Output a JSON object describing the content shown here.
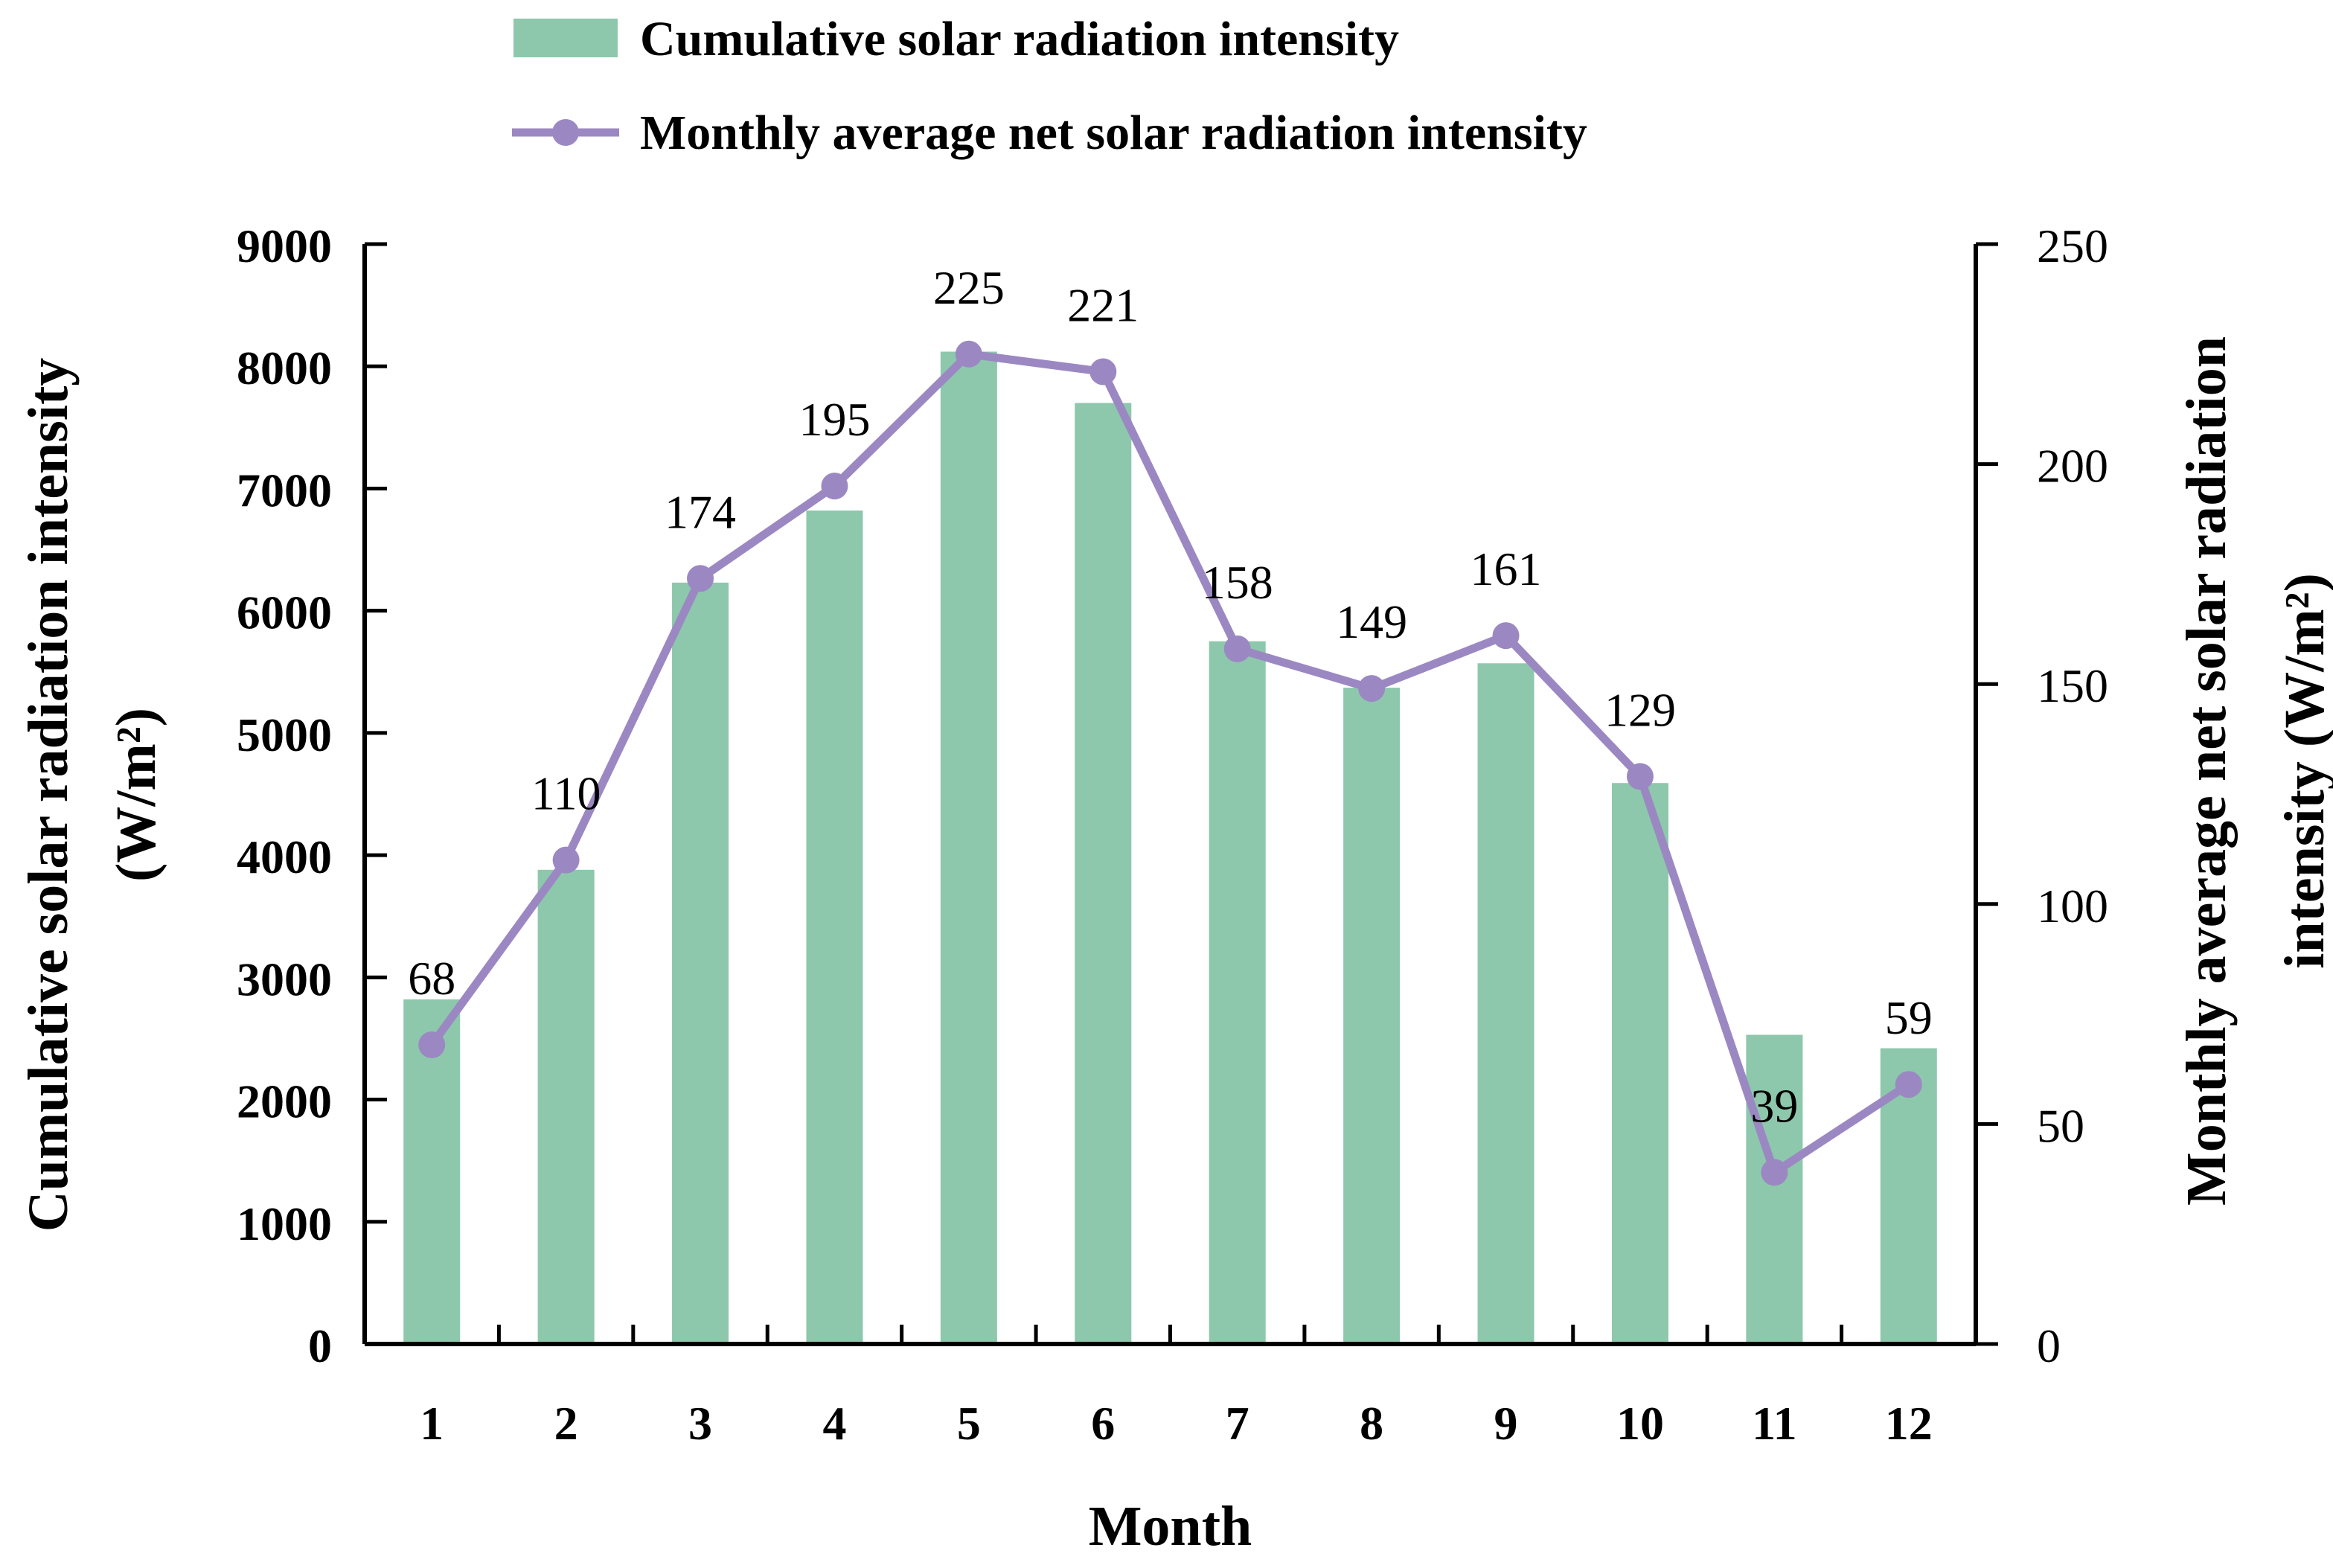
{
  "chart_data": {
    "type": "bar+line",
    "categories": [
      "1",
      "2",
      "3",
      "4",
      "5",
      "6",
      "7",
      "8",
      "9",
      "10",
      "11",
      "12"
    ],
    "series": [
      {
        "name": "Cumulative solar radiation intensity",
        "type": "bar",
        "axis": "left",
        "values": [
          2820,
          3880,
          6230,
          6820,
          8120,
          7700,
          5750,
          5370,
          5570,
          4590,
          2530,
          2420
        ]
      },
      {
        "name": "Monthly average net solar radiation intensity",
        "type": "line",
        "axis": "right",
        "values": [
          68,
          110,
          174,
          195,
          225,
          221,
          158,
          149,
          161,
          129,
          39,
          59
        ],
        "labels": [
          "68",
          "110",
          "174",
          "195",
          "225",
          "221",
          "158",
          "149",
          "161",
          "129",
          "39",
          "59"
        ]
      }
    ],
    "xlabel": "Month",
    "ylabel_left": [
      "Cumulative solar radiation intensity",
      "(W/m²)"
    ],
    "ylabel_right": [
      "Monthly average net solar radiation",
      "intensity (W/m²)"
    ],
    "ylim_left": [
      0,
      9000
    ],
    "ylim_right": [
      0,
      250
    ],
    "yticks_left": [
      "0",
      "1000",
      "2000",
      "3000",
      "4000",
      "5000",
      "6000",
      "7000",
      "8000",
      "9000"
    ],
    "yticks_right": [
      "0",
      "50",
      "100",
      "150",
      "200",
      "250"
    ],
    "legend": "top-center",
    "grid": false,
    "colors": {
      "bar": "#8DC8AC",
      "line": "#9B88C2",
      "axis": "#000000"
    }
  }
}
